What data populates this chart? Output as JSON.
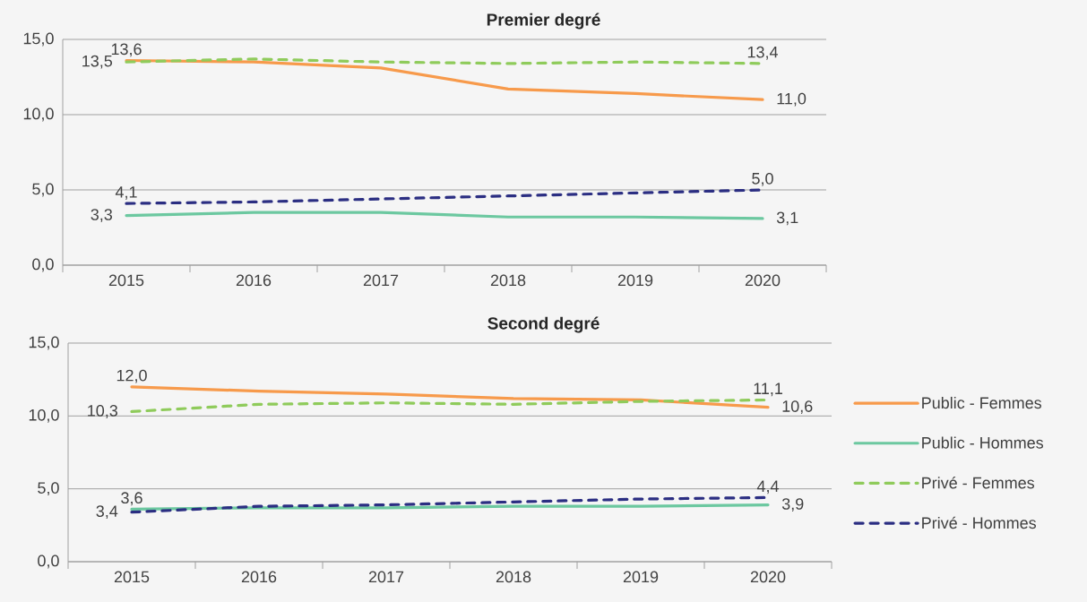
{
  "chart_data": [
    {
      "type": "line",
      "title": "Premier degré",
      "categories": [
        "2015",
        "2016",
        "2017",
        "2018",
        "2019",
        "2020"
      ],
      "series": [
        {
          "color": "#f79a4b",
          "line_style": "solid",
          "values": [
            13.6,
            13.5,
            13.1,
            11.7,
            11.4,
            11.0
          ],
          "value_labels": [
            "13,6",
            null,
            null,
            null,
            null,
            "11,0"
          ]
        },
        {
          "color": "#6cc8a0",
          "line_style": "solid",
          "values": [
            3.3,
            3.5,
            3.5,
            3.2,
            3.2,
            3.1
          ],
          "value_labels": [
            "3,3",
            null,
            null,
            null,
            null,
            "3,1"
          ]
        },
        {
          "color": "#8fcb5b",
          "line_style": "dashed",
          "values": [
            13.5,
            13.7,
            13.5,
            13.4,
            13.5,
            13.4
          ],
          "value_labels": [
            "13,5",
            null,
            null,
            null,
            null,
            "13,4"
          ]
        },
        {
          "color": "#2b2e82",
          "line_style": "dashed",
          "values": [
            4.1,
            4.2,
            4.4,
            4.6,
            4.8,
            5.0
          ],
          "value_labels": [
            "4,1",
            null,
            null,
            null,
            null,
            "5,0"
          ]
        }
      ],
      "ylim": [
        0,
        15
      ],
      "yticks": [
        {
          "value": 0,
          "label": "0,0"
        },
        {
          "value": 5,
          "label": "5,0"
        },
        {
          "value": 10,
          "label": "10,0"
        },
        {
          "value": 15,
          "label": "15,0"
        }
      ],
      "grid": "y"
    },
    {
      "type": "line",
      "title": "Second degré",
      "categories": [
        "2015",
        "2016",
        "2017",
        "2018",
        "2019",
        "2020"
      ],
      "series": [
        {
          "name": "Public - Femmes",
          "color": "#f79a4b",
          "line_style": "solid",
          "values": [
            12.0,
            11.7,
            11.5,
            11.2,
            11.1,
            10.6
          ],
          "value_labels": [
            "12,0",
            null,
            null,
            null,
            null,
            "10,6"
          ]
        },
        {
          "name": "Public - Hommes",
          "color": "#6cc8a0",
          "line_style": "solid",
          "values": [
            3.6,
            3.7,
            3.7,
            3.8,
            3.8,
            3.9
          ],
          "value_labels": [
            "3,6",
            null,
            null,
            null,
            null,
            "3,9"
          ]
        },
        {
          "name": "Privé - Femmes",
          "color": "#8fcb5b",
          "line_style": "dashed",
          "values": [
            10.3,
            10.8,
            10.9,
            10.8,
            11.0,
            11.1
          ],
          "value_labels": [
            "10,3",
            null,
            null,
            null,
            null,
            "11,1"
          ]
        },
        {
          "name": "Privé - Hommes",
          "color": "#2b2e82",
          "line_style": "dashed",
          "values": [
            3.4,
            3.8,
            3.9,
            4.1,
            4.3,
            4.4
          ],
          "value_labels": [
            "3,4",
            null,
            null,
            null,
            null,
            "4,4"
          ]
        }
      ],
      "ylim": [
        0,
        15
      ],
      "yticks": [
        {
          "value": 0,
          "label": "0,0"
        },
        {
          "value": 5,
          "label": "5,0"
        },
        {
          "value": 10,
          "label": "10,0"
        },
        {
          "value": 15,
          "label": "15,0"
        }
      ],
      "grid": "y",
      "legend": "right"
    }
  ]
}
